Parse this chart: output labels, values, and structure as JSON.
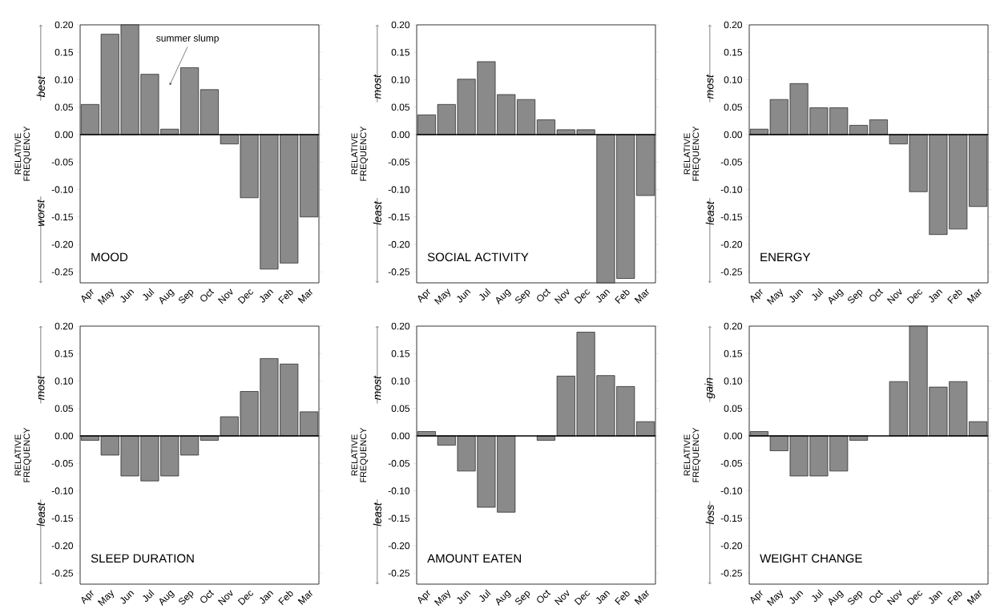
{
  "chart_data": [
    {
      "type": "bar",
      "title": "MOOD",
      "ylabel": "RELATIVE FREQUENCY",
      "categories": [
        "Apr",
        "May",
        "Jun",
        "Jul",
        "Aug",
        "Sep",
        "Oct",
        "Nov",
        "Dec",
        "Jan",
        "Feb",
        "Mar"
      ],
      "values": [
        0.055,
        0.183,
        0.2,
        0.11,
        0.01,
        0.122,
        0.082,
        -0.017,
        -0.115,
        -0.245,
        -0.234,
        -0.15
      ],
      "color": "#8a8a8a",
      "ylim": [
        -0.27,
        0.2
      ],
      "yticks": [
        {
          "value": 0.2,
          "label": "0.20"
        },
        {
          "value": 0.15,
          "label": "0.15"
        },
        {
          "value": 0.1,
          "label": "0.10"
        },
        {
          "value": 0.05,
          "label": "0.05"
        },
        {
          "value": 0,
          "label": "0.00"
        },
        {
          "value": -0.05,
          "label": "-0.05"
        },
        {
          "value": -0.1,
          "label": "-0.10"
        },
        {
          "value": -0.15,
          "label": "-0.15"
        },
        {
          "value": -0.2,
          "label": "-0.20"
        },
        {
          "value": -0.25,
          "label": "-0.25"
        }
      ],
      "ref_lines": [
        {
          "axis": "y",
          "value": 0
        }
      ],
      "annotations": [
        "best",
        "worst",
        {
          "text": "summer slump",
          "x": "Aug",
          "y": 0.09
        }
      ]
    },
    {
      "type": "bar",
      "title": "SOCIAL ACTIVITY",
      "ylabel": "RELATIVE FREQUENCY",
      "categories": [
        "Apr",
        "May",
        "Jun",
        "Jul",
        "Aug",
        "Sep",
        "Oct",
        "Nov",
        "Dec",
        "Jan",
        "Feb",
        "Mar"
      ],
      "values": [
        0.036,
        0.055,
        0.101,
        0.133,
        0.073,
        0.064,
        0.027,
        0.009,
        0.009,
        -0.27,
        -0.262,
        -0.111
      ],
      "color": "#8a8a8a",
      "ylim": [
        -0.27,
        0.2
      ],
      "yticks": [
        {
          "value": 0.2,
          "label": "0.20"
        },
        {
          "value": 0.15,
          "label": "0.15"
        },
        {
          "value": 0.1,
          "label": "0.10"
        },
        {
          "value": 0.05,
          "label": "0.05"
        },
        {
          "value": 0,
          "label": "0.00"
        },
        {
          "value": -0.05,
          "label": "-0.05"
        },
        {
          "value": -0.1,
          "label": "-0.10"
        },
        {
          "value": -0.15,
          "label": "-0.15"
        },
        {
          "value": -0.2,
          "label": "-0.20"
        },
        {
          "value": -0.25,
          "label": "-0.25"
        }
      ],
      "ref_lines": [
        {
          "axis": "y",
          "value": 0
        }
      ],
      "annotations": [
        "most",
        "least"
      ]
    },
    {
      "type": "bar",
      "title": "ENERGY",
      "ylabel": "RELATIVE FREQUENCY",
      "categories": [
        "Apr",
        "May",
        "Jun",
        "Jul",
        "Aug",
        "Sep",
        "Oct",
        "Nov",
        "Dec",
        "Jan",
        "Feb",
        "Mar"
      ],
      "values": [
        0.01,
        0.064,
        0.093,
        0.049,
        0.049,
        0.017,
        0.027,
        -0.017,
        -0.104,
        -0.182,
        -0.172,
        -0.131
      ],
      "color": "#8a8a8a",
      "ylim": [
        -0.27,
        0.2
      ],
      "yticks": [
        {
          "value": 0.2,
          "label": "0.20"
        },
        {
          "value": 0.15,
          "label": "0.15"
        },
        {
          "value": 0.1,
          "label": "0.10"
        },
        {
          "value": 0.05,
          "label": "0.05"
        },
        {
          "value": 0,
          "label": "0.00"
        },
        {
          "value": -0.05,
          "label": "-0.05"
        },
        {
          "value": -0.1,
          "label": "-0.10"
        },
        {
          "value": -0.15,
          "label": "-0.15"
        },
        {
          "value": -0.2,
          "label": "-0.20"
        },
        {
          "value": -0.25,
          "label": "-0.25"
        }
      ],
      "ref_lines": [
        {
          "axis": "y",
          "value": 0
        }
      ],
      "annotations": [
        "most",
        "least"
      ]
    },
    {
      "type": "bar",
      "title": "SLEEP DURATION",
      "ylabel": "RELATIVE FREQUENCY",
      "categories": [
        "Apr",
        "May",
        "Jun",
        "Jul",
        "Aug",
        "Sep",
        "Oct",
        "Nov",
        "Dec",
        "Jan",
        "Feb",
        "Mar"
      ],
      "values": [
        -0.008,
        -0.035,
        -0.073,
        -0.082,
        -0.073,
        -0.035,
        -0.008,
        0.035,
        0.081,
        0.141,
        0.131,
        0.044
      ],
      "color": "#8a8a8a",
      "ylim": [
        -0.27,
        0.2
      ],
      "yticks": [
        {
          "value": 0.2,
          "label": "0.20"
        },
        {
          "value": 0.15,
          "label": "0.15"
        },
        {
          "value": 0.1,
          "label": "0.10"
        },
        {
          "value": 0.05,
          "label": "0.05"
        },
        {
          "value": 0,
          "label": "0.00"
        },
        {
          "value": -0.05,
          "label": "-0.05"
        },
        {
          "value": -0.1,
          "label": "-0.10"
        },
        {
          "value": -0.15,
          "label": "-0.15"
        },
        {
          "value": -0.2,
          "label": "-0.20"
        },
        {
          "value": -0.25,
          "label": "-0.25"
        }
      ],
      "ref_lines": [
        {
          "axis": "y",
          "value": 0
        }
      ],
      "annotations": [
        "most",
        "least"
      ]
    },
    {
      "type": "bar",
      "title": "AMOUNT EATEN",
      "ylabel": "RELATIVE FREQUENCY",
      "categories": [
        "Apr",
        "May",
        "Jun",
        "Jul",
        "Aug",
        "Sep",
        "Oct",
        "Nov",
        "Dec",
        "Jan",
        "Feb",
        "Mar"
      ],
      "values": [
        0.008,
        -0.017,
        -0.064,
        -0.13,
        -0.139,
        null,
        -0.008,
        0.109,
        0.189,
        0.11,
        0.09,
        0.026
      ],
      "color": "#8a8a8a",
      "ylim": [
        -0.27,
        0.2
      ],
      "yticks": [
        {
          "value": 0.2,
          "label": "0.20"
        },
        {
          "value": 0.15,
          "label": "0.15"
        },
        {
          "value": 0.1,
          "label": "0.10"
        },
        {
          "value": 0.05,
          "label": "0.05"
        },
        {
          "value": 0,
          "label": "0.00"
        },
        {
          "value": -0.05,
          "label": "-0.05"
        },
        {
          "value": -0.1,
          "label": "-0.10"
        },
        {
          "value": -0.15,
          "label": "-0.15"
        },
        {
          "value": -0.2,
          "label": "-0.20"
        },
        {
          "value": -0.25,
          "label": "-0.25"
        }
      ],
      "ref_lines": [
        {
          "axis": "y",
          "value": 0
        }
      ],
      "annotations": [
        "most",
        "least"
      ]
    },
    {
      "type": "bar",
      "title": "WEIGHT CHANGE",
      "ylabel": "RELATIVE FREQUENCY",
      "categories": [
        "Apr",
        "May",
        "Jun",
        "Jul",
        "Aug",
        "Sep",
        "Oct",
        "Nov",
        "Dec",
        "Jan",
        "Feb",
        "Mar"
      ],
      "values": [
        0.008,
        -0.027,
        -0.073,
        -0.073,
        -0.064,
        -0.008,
        null,
        0.099,
        0.2,
        0.089,
        0.099,
        0.026
      ],
      "color": "#8a8a8a",
      "ylim": [
        -0.27,
        0.2
      ],
      "yticks": [
        {
          "value": 0.2,
          "label": "0.20"
        },
        {
          "value": 0.15,
          "label": "0.15"
        },
        {
          "value": 0.1,
          "label": "0.10"
        },
        {
          "value": 0.05,
          "label": "0.05"
        },
        {
          "value": 0,
          "label": "0.00"
        },
        {
          "value": -0.05,
          "label": "-0.05"
        },
        {
          "value": -0.1,
          "label": "-0.10"
        },
        {
          "value": -0.15,
          "label": "-0.15"
        },
        {
          "value": -0.2,
          "label": "-0.20"
        },
        {
          "value": -0.25,
          "label": "-0.25"
        }
      ],
      "ref_lines": [
        {
          "axis": "y",
          "value": 0
        }
      ],
      "annotations": [
        "gain",
        "loss"
      ]
    }
  ]
}
